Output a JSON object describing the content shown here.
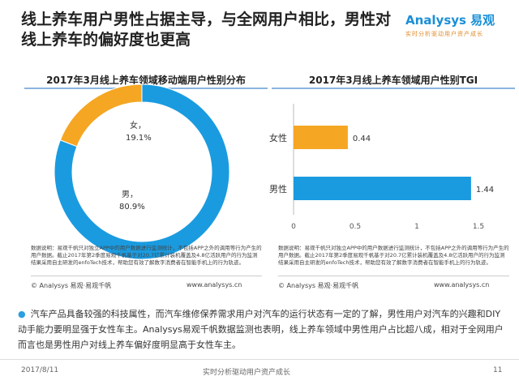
{
  "title": "线上养车用户男性占据主导，与全网用户相比，男性对线上养车的偏好度也更高",
  "logo": {
    "brand": "Analysys 易观",
    "slogan": "实时分析驱动用户资产成长"
  },
  "chart_data": [
    {
      "type": "pie",
      "title": "2017年3月线上养车领域移动端用户性别分布",
      "donut": true,
      "slices": [
        {
          "label": "女",
          "value": 19.1,
          "display": "19.1%",
          "color": "#f5a623"
        },
        {
          "label": "男",
          "value": 80.9,
          "display": "80.9%",
          "color": "#1a9be0"
        }
      ]
    },
    {
      "type": "bar",
      "orientation": "horizontal",
      "title": "2017年3月线上养车领域用户性别TGI",
      "categories": [
        "女性",
        "男性"
      ],
      "values": [
        0.44,
        1.44
      ],
      "colors": [
        "#f5a623",
        "#1a9be0"
      ],
      "xlim": [
        0,
        1.5
      ],
      "ticks": [
        "0",
        "0.5",
        "1",
        "1.5"
      ]
    }
  ],
  "note": "数据说明：易观千帆只对独立APP中的用户数据进行监测统计，不包括APP之外的调用等行为产生的用户数据。截止2017年第2季度易观千帆基于对20.7亿累计装机覆盖及4.8亿活跃用户的行为监测结果采用自主研发的enfoTech技术，帮助您有效了解数字消费者在智能手机上的行为轨迹。",
  "source": "© Analysys 易观·易观千帆",
  "url": "www.analysys.cn",
  "bullet": "汽车产品具备较强的科技属性，而汽车维修保养需求用户对汽车的运行状态有一定的了解，男性用户对汽车的兴趣和DIY动手能力要明显强于女性车主。Analysys易观千帆数据监测也表明，线上养车领域中男性用户占比超八成，相对于全网用户而言也是男性用户对线上养车偏好度明显高于女性车主。",
  "footer": {
    "date": "2017/8/11",
    "slogan": "实时分析驱动用户资产成长",
    "page": "11"
  }
}
